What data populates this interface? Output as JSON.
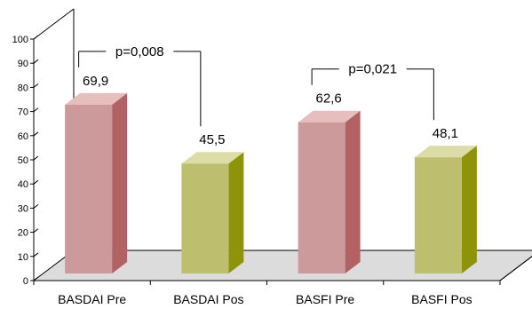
{
  "chart_data": {
    "type": "bar",
    "title": "",
    "xlabel": "",
    "ylabel": "",
    "categories": [
      "BASDAI Pre",
      "BASDAI Pos",
      "BASFI Pre",
      "BASFI Pos"
    ],
    "values": [
      69.9,
      45.5,
      62.6,
      48.1
    ],
    "value_labels": [
      "69,9",
      "45,5",
      "62,6",
      "48,1"
    ],
    "ylim": [
      0,
      100
    ],
    "yticks": [
      0,
      10,
      20,
      30,
      40,
      50,
      60,
      70,
      80,
      90,
      100
    ],
    "bar_style": "3d",
    "colors": {
      "pre_front": "#CD9A9B",
      "pre_side": "#B26263",
      "pre_top": "#E6BEBE",
      "pos_front": "#BDBE6E",
      "pos_side": "#8F930A",
      "pos_top": "#DBDCA8",
      "floor": "#DCDCDC"
    },
    "bar_colors": [
      "pre",
      "pos",
      "pre",
      "pos"
    ],
    "annotations": [
      {
        "text": "p=0,008",
        "from": 0,
        "to": 1
      },
      {
        "text": "p=0,021",
        "from": 2,
        "to": 3
      }
    ]
  }
}
